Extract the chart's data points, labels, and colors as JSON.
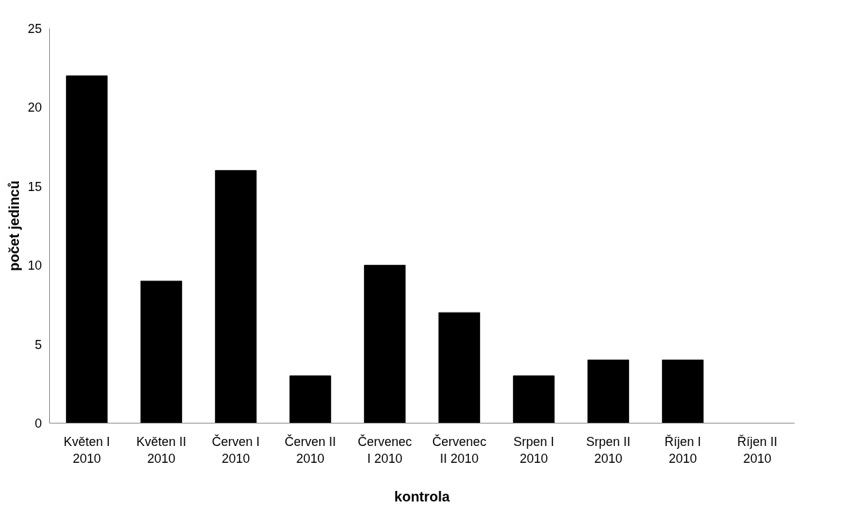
{
  "chart_data": {
    "type": "bar",
    "xlabel": "kontrola",
    "ylabel": "počet jedinců",
    "categories": [
      "Květen I 2010",
      "Květen II 2010",
      "Červen I 2010",
      "Červen II 2010",
      "Červenec I 2010",
      "Červenec II 2010",
      "Srpen I 2010",
      "Srpen II 2010",
      "Říjen I 2010",
      "Říjen II 2010"
    ],
    "values": [
      22,
      9,
      16,
      3,
      10,
      7,
      3,
      4,
      4,
      0
    ],
    "color": "#000000",
    "ylim": [
      0,
      25
    ],
    "yticks": [
      0,
      5,
      10,
      15,
      20,
      25
    ],
    "grid": false
  }
}
